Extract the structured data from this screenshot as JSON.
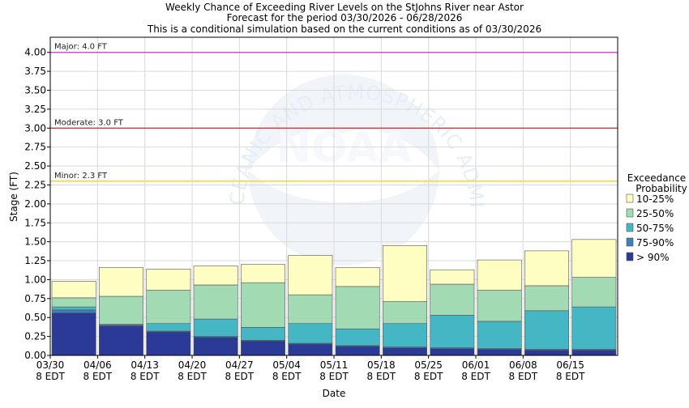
{
  "chart_data": {
    "type": "bar",
    "title_lines": [
      "Weekly Chance of Exceeding River Levels on the StJohns River near Astor",
      "Forecast for the period 03/30/2026 - 06/28/2026",
      "This is a conditional simulation based on the current conditions as of 03/30/2026"
    ],
    "xlabel": "Date",
    "ylabel": "Stage (FT)",
    "ylim": [
      0,
      4.2
    ],
    "y_ticks": [
      "0.00",
      "0.25",
      "0.50",
      "0.75",
      "1.00",
      "1.25",
      "1.50",
      "1.75",
      "2.00",
      "2.25",
      "2.50",
      "2.75",
      "3.00",
      "3.25",
      "3.50",
      "3.75",
      "4.00"
    ],
    "categories": [
      {
        "date": "03/30",
        "time": "8 EDT"
      },
      {
        "date": "04/06",
        "time": "8 EDT"
      },
      {
        "date": "04/13",
        "time": "8 EDT"
      },
      {
        "date": "04/20",
        "time": "8 EDT"
      },
      {
        "date": "04/27",
        "time": "8 EDT"
      },
      {
        "date": "05/04",
        "time": "8 EDT"
      },
      {
        "date": "05/11",
        "time": "8 EDT"
      },
      {
        "date": "05/18",
        "time": "8 EDT"
      },
      {
        "date": "05/25",
        "time": "8 EDT"
      },
      {
        "date": "06/01",
        "time": "8 EDT"
      },
      {
        "date": "06/08",
        "time": "8 EDT"
      },
      {
        "date": "06/15",
        "time": "8 EDT"
      }
    ],
    "series": [
      {
        "name": "> 90%",
        "color": "#2b3a97",
        "values": [
          0.56,
          0.39,
          0.31,
          0.24,
          0.19,
          0.15,
          0.12,
          0.1,
          0.09,
          0.08,
          0.07,
          0.07
        ]
      },
      {
        "name": "75-90%",
        "color": "#3d7fba",
        "values": [
          0.6,
          0.4,
          0.32,
          0.25,
          0.2,
          0.16,
          0.13,
          0.11,
          0.1,
          0.09,
          0.08,
          0.08
        ]
      },
      {
        "name": "50-75%",
        "color": "#45b7c4",
        "values": [
          0.64,
          0.41,
          0.42,
          0.48,
          0.37,
          0.42,
          0.35,
          0.42,
          0.53,
          0.45,
          0.59,
          0.64
        ]
      },
      {
        "name": "25-50%",
        "color": "#a2dab4",
        "values": [
          0.76,
          0.78,
          0.86,
          0.93,
          0.96,
          0.8,
          0.91,
          0.71,
          0.94,
          0.86,
          0.92,
          1.03
        ]
      },
      {
        "name": "10-25%",
        "color": "#fefec2",
        "values": [
          0.98,
          1.16,
          1.14,
          1.18,
          1.2,
          1.32,
          1.16,
          1.45,
          1.13,
          1.26,
          1.38,
          1.53
        ]
      }
    ],
    "flood_levels": [
      {
        "label": "Major: 4.0 FT",
        "value": 4.0,
        "color": "#cc33cc"
      },
      {
        "label": "Moderate: 3.0 FT",
        "value": 3.0,
        "color": "#dd2222"
      },
      {
        "label": "Minor: 2.3 FT",
        "value": 2.3,
        "color": "#eedd66"
      }
    ],
    "legend": {
      "title_lines": [
        "Exceedance",
        "Probability"
      ],
      "placement": "right",
      "order": [
        "10-25%",
        "25-50%",
        "50-75%",
        "75-90%",
        "> 90%"
      ]
    },
    "grid": true
  },
  "watermark": {
    "logo_text": "NOAA",
    "ring_text": "NATIONAL OCEANIC AND ATMOSPHERIC ADMINISTRATION"
  }
}
